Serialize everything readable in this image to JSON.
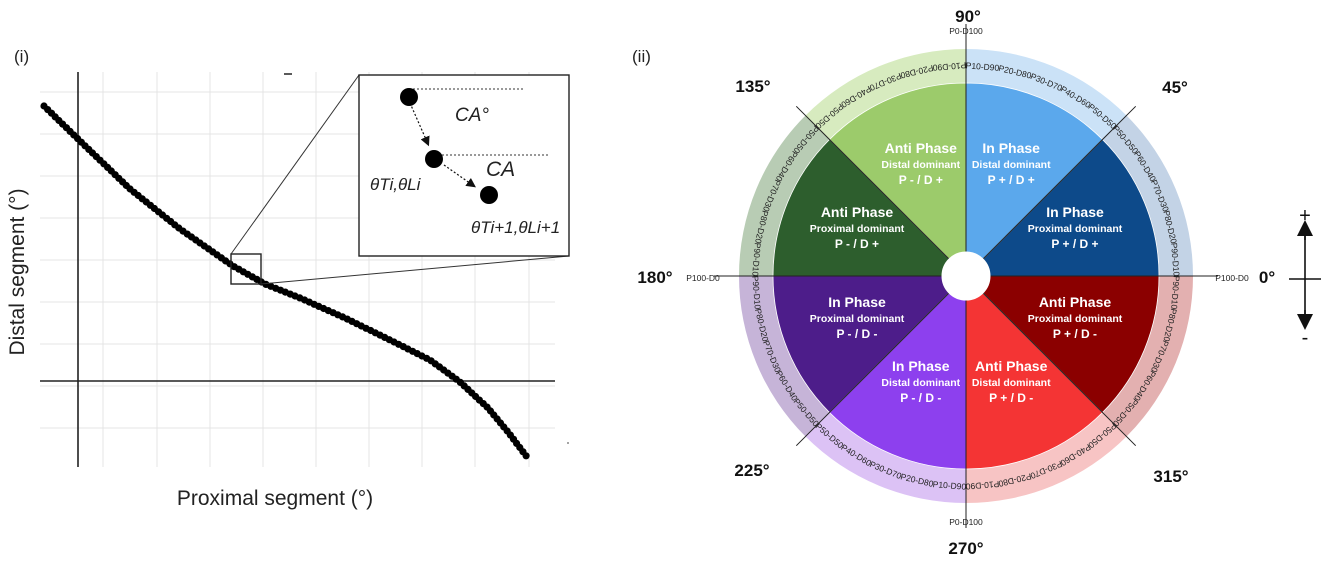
{
  "panel_i": {
    "label": "(i)",
    "xlabel": "Proximal segment (°)",
    "ylabel": "Distal segment (°)",
    "inset": {
      "ca_degree": "CA°",
      "ca": "CA",
      "point_i": "θTi,θLi",
      "point_i1": "θTi+1,θLi+1"
    }
  },
  "panel_ii": {
    "label": "(ii)",
    "angles": {
      "a0": "0°",
      "a45": "45°",
      "a90": "90°",
      "a135": "135°",
      "a180": "180°",
      "a225": "225°",
      "a270": "270°",
      "a315": "315°"
    },
    "axis_ends": {
      "right": "P100-D0",
      "left": "P100-D0",
      "top": "P0-D100",
      "bottom": "P0-D100"
    },
    "sectors": [
      {
        "title": "In Phase",
        "sub": "Proximal dominant",
        "pd": "P + / D +",
        "color": "#0d4a8a"
      },
      {
        "title": "In Phase",
        "sub": "Distal dominant",
        "pd": "P + / D +",
        "color": "#5ba8ec"
      },
      {
        "title": "Anti Phase",
        "sub": "Distal dominant",
        "pd": "P - / D +",
        "color": "#9ccb6b"
      },
      {
        "title": "Anti Phase",
        "sub": "Proximal dominant",
        "pd": "P - / D +",
        "color": "#2d5e2d"
      },
      {
        "title": "In Phase",
        "sub": "Proximal dominant",
        "pd": "P - / D -",
        "color": "#4d1d8a"
      },
      {
        "title": "In Phase",
        "sub": "Distal dominant",
        "pd": "P - / D -",
        "color": "#8d40ee"
      },
      {
        "title": "Anti Phase",
        "sub": "Distal dominant",
        "pd": "P + / D -",
        "color": "#f43434"
      },
      {
        "title": "Anti Phase",
        "sub": "Proximal dominant",
        "pd": "P + / D -",
        "color": "#8b0000"
      }
    ],
    "ring_colors": [
      "#c3d3e6",
      "#cbe2f7",
      "#d7ebbf",
      "#b8ccb4",
      "#c6b4d8",
      "#dcc2f5",
      "#f7c4c4",
      "#e3b0b0"
    ],
    "ring_labels": [
      [
        "P90-D10",
        "P80-D20",
        "P70-D30",
        "P60-D40",
        "P50-D50"
      ],
      [
        "P50-D50",
        "P40-D60",
        "P30-D70",
        "P20-D80",
        "P10-D90"
      ],
      [
        "P10-D90",
        "P20-D80",
        "P30-D70",
        "P40-D60",
        "P50-D50"
      ],
      [
        "P50-D50",
        "P60-D40",
        "P70-D30",
        "P80-D20",
        "P90-D10"
      ],
      [
        "P90-D10",
        "P80-D20",
        "P70-D30",
        "P60-D40",
        "P50-D50"
      ],
      [
        "P50-D50",
        "P40-D60",
        "P30-D70",
        "P20-D80",
        "P10-D90"
      ],
      [
        "P10-D90",
        "P20-D80",
        "P30-D70",
        "P40-D60",
        "P50-D50"
      ],
      [
        "P50-D50",
        "P60-D40",
        "P70-D30",
        "P80-D20",
        "P90-D10"
      ]
    ],
    "signs": {
      "plus": "+",
      "minus": "-"
    }
  }
}
